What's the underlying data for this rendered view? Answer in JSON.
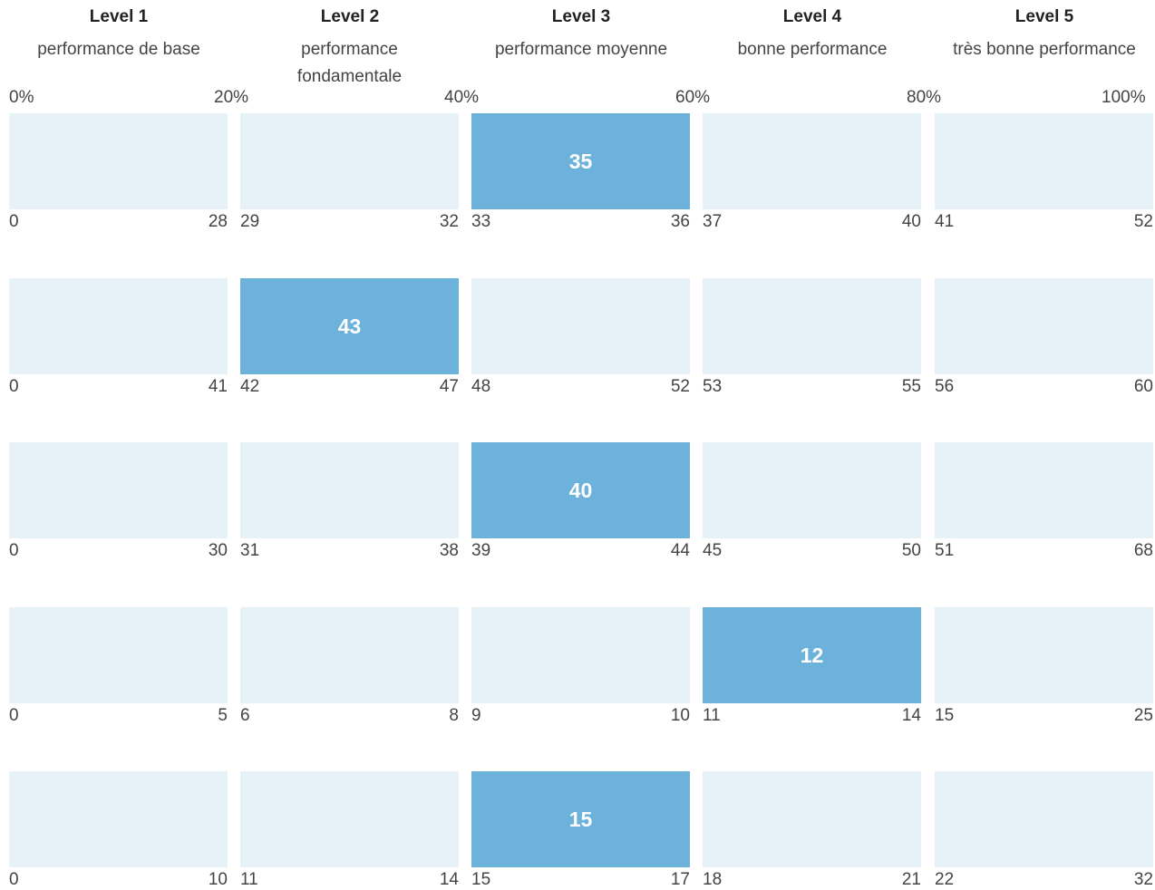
{
  "chart_data": {
    "type": "table",
    "levels": [
      {
        "name": "Level 1",
        "description": "performance de base"
      },
      {
        "name": "Level 2",
        "description": "performance fondamentale"
      },
      {
        "name": "Level 3",
        "description": "performance moyenne"
      },
      {
        "name": "Level 4",
        "description": "bonne performance"
      },
      {
        "name": "Level 5",
        "description": "très bonne performance"
      }
    ],
    "percent_ticks": [
      "0%",
      "20%",
      "40%",
      "60%",
      "80%",
      "100%"
    ],
    "rows": [
      {
        "ranges": [
          [
            0,
            28
          ],
          [
            29,
            32
          ],
          [
            33,
            36
          ],
          [
            37,
            40
          ],
          [
            41,
            52
          ]
        ],
        "score": 35,
        "highlight_level": 3
      },
      {
        "ranges": [
          [
            0,
            41
          ],
          [
            42,
            47
          ],
          [
            48,
            52
          ],
          [
            53,
            55
          ],
          [
            56,
            60
          ]
        ],
        "score": 43,
        "highlight_level": 2
      },
      {
        "ranges": [
          [
            0,
            30
          ],
          [
            31,
            38
          ],
          [
            39,
            44
          ],
          [
            45,
            50
          ],
          [
            51,
            68
          ]
        ],
        "score": 40,
        "highlight_level": 3
      },
      {
        "ranges": [
          [
            0,
            5
          ],
          [
            6,
            8
          ],
          [
            9,
            10
          ],
          [
            11,
            14
          ],
          [
            15,
            25
          ]
        ],
        "score": 12,
        "highlight_level": 4
      },
      {
        "ranges": [
          [
            0,
            10
          ],
          [
            11,
            14
          ],
          [
            15,
            17
          ],
          [
            18,
            21
          ],
          [
            22,
            32
          ]
        ],
        "score": 15,
        "highlight_level": 3
      }
    ],
    "colors": {
      "cell": "#e6f1f8",
      "highlight": "#6db2db",
      "highlight_text": "#ffffff"
    }
  }
}
